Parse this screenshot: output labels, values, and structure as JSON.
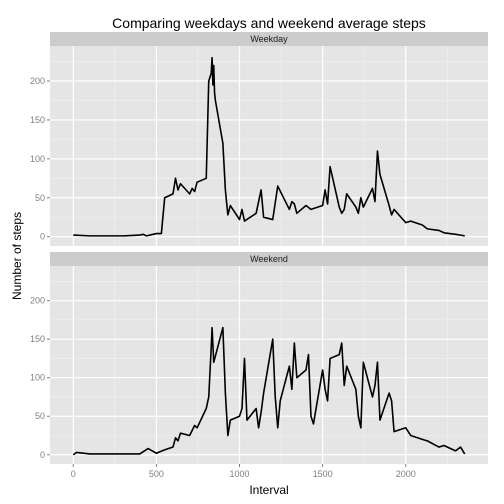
{
  "chart_data": {
    "type": "line",
    "title": "Comparing weekdays and weekend average steps",
    "xlabel": "Interval",
    "ylabel": "Number of steps",
    "xlim": [
      -140,
      2495
    ],
    "ylim": [
      -12,
      245
    ],
    "x_ticks": [
      0,
      500,
      1000,
      1500,
      2000
    ],
    "y_ticks": [
      0,
      50,
      100,
      150,
      200
    ],
    "grid": true,
    "legend": "none",
    "colors": {
      "panel_background": "#e5e5e5",
      "grid_major": "#ffffff",
      "grid_minor": "#f2f2f2",
      "strip_background": "#cccccc",
      "line": "#000000"
    },
    "panels": [
      {
        "name": "Weekday",
        "x": [
          0,
          100,
          200,
          300,
          400,
          420,
          440,
          500,
          530,
          550,
          600,
          615,
          630,
          645,
          700,
          715,
          730,
          745,
          800,
          815,
          830,
          835,
          840,
          845,
          850,
          855,
          900,
          915,
          930,
          945,
          1000,
          1015,
          1030,
          1100,
          1130,
          1145,
          1200,
          1230,
          1300,
          1315,
          1330,
          1345,
          1400,
          1430,
          1500,
          1515,
          1530,
          1545,
          1600,
          1615,
          1630,
          1645,
          1700,
          1715,
          1730,
          1745,
          1800,
          1815,
          1830,
          1845,
          1900,
          1915,
          1930,
          2000,
          2030,
          2100,
          2130,
          2200,
          2230,
          2300,
          2330,
          2355
        ],
        "y": [
          2,
          1,
          1,
          1,
          2,
          3,
          1,
          4,
          4,
          50,
          55,
          75,
          60,
          68,
          55,
          62,
          58,
          70,
          75,
          200,
          210,
          230,
          195,
          220,
          185,
          175,
          120,
          60,
          28,
          40,
          22,
          35,
          20,
          30,
          60,
          25,
          22,
          65,
          35,
          45,
          42,
          30,
          40,
          35,
          40,
          60,
          42,
          90,
          38,
          30,
          35,
          55,
          38,
          30,
          50,
          38,
          62,
          45,
          110,
          80,
          40,
          28,
          35,
          18,
          20,
          15,
          10,
          8,
          5,
          3,
          2,
          1
        ]
      },
      {
        "name": "Weekend",
        "x": [
          0,
          20,
          100,
          200,
          300,
          400,
          450,
          500,
          545,
          600,
          615,
          630,
          645,
          700,
          730,
          745,
          800,
          815,
          830,
          835,
          845,
          900,
          915,
          930,
          945,
          1000,
          1015,
          1030,
          1045,
          1100,
          1115,
          1130,
          1145,
          1200,
          1215,
          1230,
          1245,
          1300,
          1315,
          1330,
          1345,
          1400,
          1415,
          1430,
          1445,
          1500,
          1515,
          1530,
          1545,
          1600,
          1615,
          1630,
          1645,
          1700,
          1715,
          1730,
          1745,
          1800,
          1815,
          1830,
          1845,
          1900,
          1915,
          1930,
          2000,
          2030,
          2100,
          2130,
          2200,
          2230,
          2300,
          2330,
          2355
        ],
        "y": [
          0,
          3,
          1,
          1,
          1,
          1,
          8,
          2,
          6,
          10,
          22,
          18,
          28,
          25,
          38,
          35,
          60,
          75,
          140,
          165,
          120,
          165,
          80,
          25,
          45,
          50,
          60,
          125,
          45,
          60,
          35,
          55,
          80,
          150,
          75,
          35,
          70,
          115,
          85,
          145,
          100,
          110,
          130,
          50,
          40,
          110,
          85,
          70,
          125,
          130,
          145,
          90,
          115,
          85,
          50,
          35,
          120,
          75,
          90,
          120,
          45,
          80,
          70,
          30,
          35,
          25,
          20,
          18,
          10,
          12,
          5,
          10,
          1
        ]
      }
    ]
  }
}
